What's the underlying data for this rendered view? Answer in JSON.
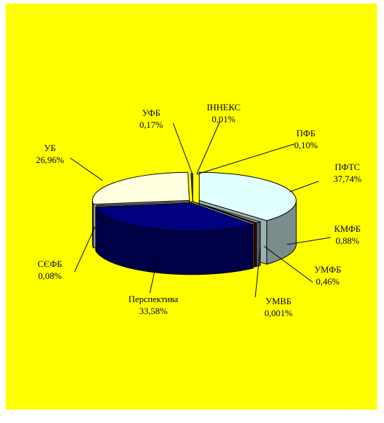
{
  "chart_data": {
    "type": "pie",
    "style": "3d-exploded",
    "legend": "none",
    "slices": [
      {
        "name": "ПФТС",
        "value": 37.74,
        "label": "37,74%",
        "color": "#e0ffff"
      },
      {
        "name": "КМФБ",
        "value": 0.88,
        "label": "0,88%",
        "color": "#a0a0a0"
      },
      {
        "name": "УМФБ",
        "value": 0.46,
        "label": "0,46%",
        "color": "#800000"
      },
      {
        "name": "УМВБ",
        "value": 0.001,
        "label": "0,001%",
        "color": "#c0c0c0"
      },
      {
        "name": "Перспектива",
        "value": 33.58,
        "label": "33,58%",
        "color": "#000080"
      },
      {
        "name": "СЄФБ",
        "value": 0.08,
        "label": "0,08%",
        "color": "#c0c0c0"
      },
      {
        "name": "УБ",
        "value": 26.96,
        "label": "26,96%",
        "color": "#ffffe0"
      },
      {
        "name": "УФБ",
        "value": 0.17,
        "label": "0,17%",
        "color": "#c0c0c0"
      },
      {
        "name": "ІННЕКС",
        "value": 0.01,
        "label": "0,01%",
        "color": "#c0c0c0"
      },
      {
        "name": "ПФБ",
        "value": 0.1,
        "label": "0,10%",
        "color": "#c0c0c0"
      }
    ],
    "background_color": "#ffff00"
  }
}
